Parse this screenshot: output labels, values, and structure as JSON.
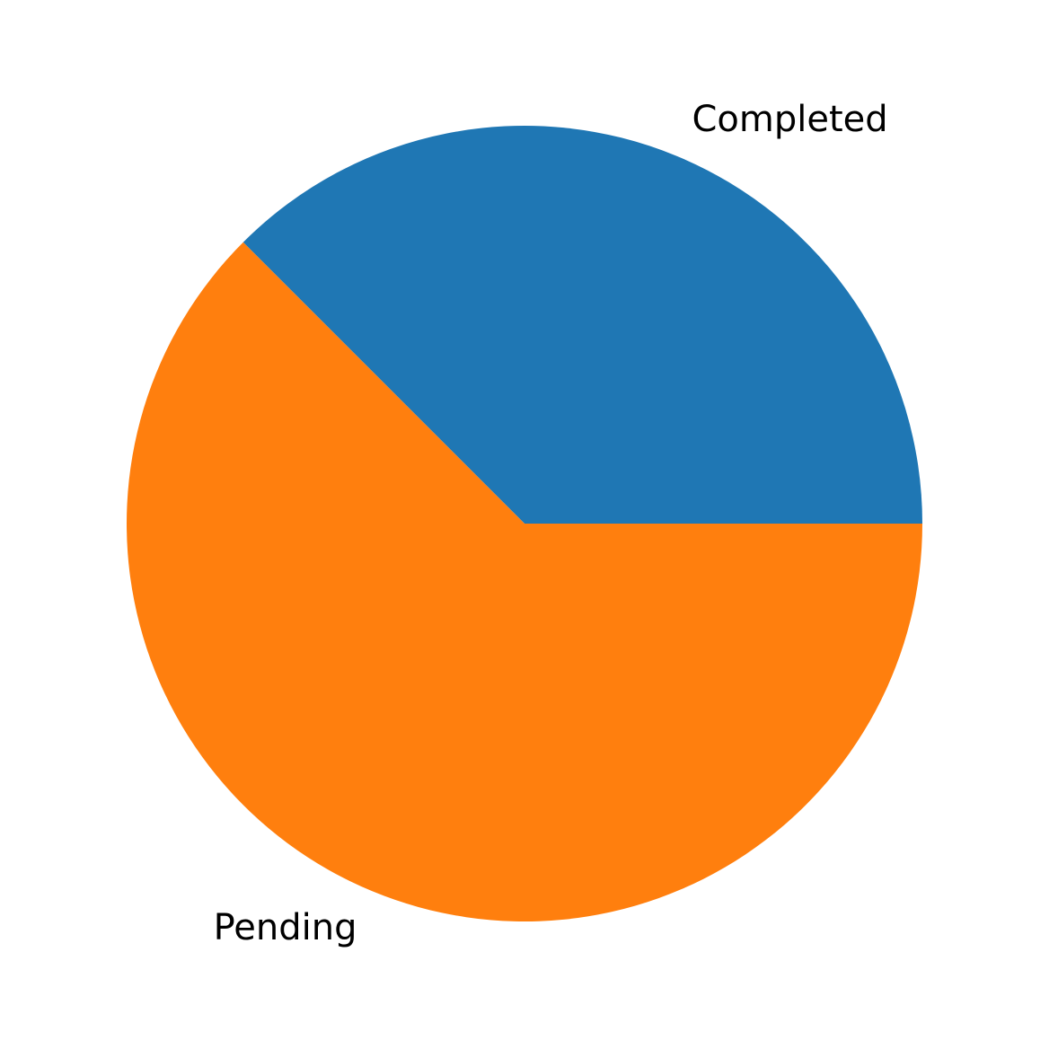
{
  "chart_data": {
    "type": "pie",
    "title": "",
    "slices": [
      {
        "label": "Completed",
        "value": 37.5,
        "color": "#1f77b4"
      },
      {
        "label": "Pending",
        "value": 62.5,
        "color": "#ff7f0e"
      }
    ],
    "start_angle_deg": 0,
    "direction": "counterclockwise",
    "legend": "none"
  }
}
